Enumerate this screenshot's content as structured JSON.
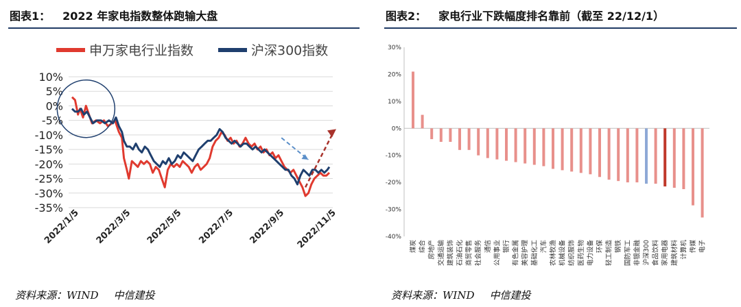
{
  "left": {
    "title_label": "图表1：",
    "title_text": "2022 年家电指数整体跑输大盘",
    "source_a": "资料来源：WIND",
    "source_b": "中信建投",
    "colors": {
      "sw": "#e03a2f",
      "hs": "#1f3f6e",
      "annot_blue": "#5b8fc9",
      "annot_red": "#a8322b"
    },
    "chart_data": {
      "type": "line",
      "x_ticks": [
        "2022/1/5",
        "2022/3/5",
        "2022/5/5",
        "2022/7/5",
        "2022/9/5",
        "2022/11/5"
      ],
      "y_ticks": [
        "10%",
        "5%",
        "0%",
        "-5%",
        "-10%",
        "-15%",
        "-20%",
        "-25%",
        "-30%",
        "-35%"
      ],
      "ylim": [
        -35,
        10
      ],
      "grid": true,
      "legend_position": "top",
      "series": [
        {
          "name": "申万家电行业指数",
          "values": [
            [
              0,
              3
            ],
            [
              3,
              2
            ],
            [
              6,
              -3
            ],
            [
              8,
              -1
            ],
            [
              11,
              -4
            ],
            [
              14,
              0
            ],
            [
              17,
              -3
            ],
            [
              20,
              -6
            ],
            [
              24,
              -5
            ],
            [
              28,
              -6
            ],
            [
              32,
              -5
            ],
            [
              36,
              -7
            ],
            [
              40,
              -6
            ],
            [
              43,
              -5
            ],
            [
              47,
              -9
            ],
            [
              50,
              -11
            ],
            [
              52,
              -18
            ],
            [
              55,
              -22
            ],
            [
              57,
              -25
            ],
            [
              60,
              -19
            ],
            [
              63,
              -20
            ],
            [
              66,
              -21
            ],
            [
              69,
              -19
            ],
            [
              72,
              -20
            ],
            [
              75,
              -19
            ],
            [
              78,
              -20
            ],
            [
              81,
              -23
            ],
            [
              84,
              -21
            ],
            [
              87,
              -22
            ],
            [
              90,
              -25
            ],
            [
              93,
              -28
            ],
            [
              96,
              -22
            ],
            [
              99,
              -20
            ],
            [
              102,
              -21
            ],
            [
              105,
              -20
            ],
            [
              108,
              -21
            ],
            [
              111,
              -19
            ],
            [
              114,
              -20
            ],
            [
              117,
              -21
            ],
            [
              120,
              -23
            ],
            [
              123,
              -21
            ],
            [
              126,
              -20
            ],
            [
              129,
              -22
            ],
            [
              132,
              -21
            ],
            [
              135,
              -20
            ],
            [
              138,
              -18
            ],
            [
              141,
              -14
            ],
            [
              144,
              -12
            ],
            [
              147,
              -11
            ],
            [
              150,
              -9
            ],
            [
              153,
              -10
            ],
            [
              156,
              -12
            ],
            [
              159,
              -11
            ],
            [
              162,
              -13
            ],
            [
              165,
              -12
            ],
            [
              168,
              -14
            ],
            [
              171,
              -13
            ],
            [
              174,
              -11
            ],
            [
              177,
              -13
            ],
            [
              180,
              -14
            ],
            [
              183,
              -13
            ],
            [
              186,
              -15
            ],
            [
              189,
              -14
            ],
            [
              192,
              -16
            ],
            [
              195,
              -15
            ],
            [
              198,
              -17
            ],
            [
              201,
              -16
            ],
            [
              204,
              -18
            ],
            [
              207,
              -17
            ],
            [
              210,
              -19
            ],
            [
              213,
              -21
            ],
            [
              216,
              -22
            ],
            [
              219,
              -23
            ],
            [
              222,
              -22
            ],
            [
              225,
              -24
            ],
            [
              228,
              -26
            ],
            [
              231,
              -28
            ],
            [
              234,
              -31
            ],
            [
              237,
              -30
            ],
            [
              240,
              -27
            ],
            [
              243,
              -25
            ],
            [
              246,
              -24
            ],
            [
              249,
              -23
            ],
            [
              252,
              -24
            ],
            [
              255,
              -24
            ],
            [
              258,
              -23
            ]
          ]
        },
        {
          "name": "沪深300指数",
          "values": [
            [
              0,
              -1
            ],
            [
              3,
              -2
            ],
            [
              6,
              -2
            ],
            [
              9,
              -1
            ],
            [
              12,
              -3
            ],
            [
              15,
              -2
            ],
            [
              18,
              -4
            ],
            [
              21,
              -6
            ],
            [
              25,
              -5
            ],
            [
              29,
              -5
            ],
            [
              33,
              -6
            ],
            [
              37,
              -5
            ],
            [
              41,
              -6
            ],
            [
              44,
              -4
            ],
            [
              47,
              -7
            ],
            [
              50,
              -9
            ],
            [
              52,
              -12
            ],
            [
              55,
              -14
            ],
            [
              58,
              -14
            ],
            [
              61,
              -15
            ],
            [
              64,
              -13
            ],
            [
              67,
              -15
            ],
            [
              70,
              -16
            ],
            [
              73,
              -14
            ],
            [
              76,
              -15
            ],
            [
              79,
              -17
            ],
            [
              82,
              -19
            ],
            [
              85,
              -20
            ],
            [
              88,
              -21
            ],
            [
              91,
              -19
            ],
            [
              94,
              -20
            ],
            [
              97,
              -18
            ],
            [
              100,
              -20
            ],
            [
              103,
              -19
            ],
            [
              106,
              -17
            ],
            [
              109,
              -18
            ],
            [
              112,
              -16
            ],
            [
              115,
              -17
            ],
            [
              118,
              -18
            ],
            [
              121,
              -19
            ],
            [
              124,
              -17
            ],
            [
              127,
              -15
            ],
            [
              130,
              -14
            ],
            [
              133,
              -13
            ],
            [
              136,
              -12
            ],
            [
              139,
              -12
            ],
            [
              142,
              -11
            ],
            [
              145,
              -10
            ],
            [
              148,
              -8
            ],
            [
              151,
              -9
            ],
            [
              154,
              -11
            ],
            [
              157,
              -12
            ],
            [
              160,
              -13
            ],
            [
              163,
              -12
            ],
            [
              166,
              -13
            ],
            [
              169,
              -14
            ],
            [
              172,
              -13
            ],
            [
              175,
              -13
            ],
            [
              178,
              -14
            ],
            [
              181,
              -15
            ],
            [
              184,
              -14
            ],
            [
              187,
              -15
            ],
            [
              190,
              -16
            ],
            [
              193,
              -15
            ],
            [
              196,
              -16
            ],
            [
              199,
              -17
            ],
            [
              202,
              -18
            ],
            [
              205,
              -19
            ],
            [
              208,
              -20
            ],
            [
              211,
              -21
            ],
            [
              214,
              -22
            ],
            [
              217,
              -22
            ],
            [
              220,
              -24
            ],
            [
              223,
              -25
            ],
            [
              226,
              -27
            ],
            [
              229,
              -24
            ],
            [
              232,
              -22
            ],
            [
              235,
              -23
            ],
            [
              238,
              -24
            ],
            [
              241,
              -22
            ],
            [
              244,
              -22
            ],
            [
              247,
              -23
            ],
            [
              250,
              -22
            ],
            [
              253,
              -23
            ],
            [
              256,
              -22
            ],
            [
              258,
              -21
            ]
          ]
        }
      ]
    }
  },
  "right": {
    "title_label": "图表2：",
    "title_text": "家电行业下跌幅度排名靠前（截至 22/12/1）",
    "source_a": "资料来源：WIND",
    "source_b": "中信建投",
    "colors": {
      "bar": "#e8908b",
      "highlight": "#c0392b",
      "benchmark": "#8ea9d6"
    },
    "chart_data": {
      "type": "bar",
      "categories": [
        "煤炭",
        "综合",
        "房地产",
        "交通运输",
        "建筑装饰",
        "石油石化",
        "商贸零售",
        "社会服务",
        "通信",
        "公用事业",
        "银行",
        "有色金属",
        "美容护理",
        "基础化工",
        "汽车",
        "农林牧渔",
        "机械设备",
        "纺织服饰",
        "医药生物",
        "电力设备",
        "环保",
        "轻工制造",
        "钢铁",
        "国防军工",
        "非银金融",
        "沪深300",
        "食品饮料",
        "家用电器",
        "建筑材料",
        "计算机",
        "传媒",
        "电子"
      ],
      "values": [
        21,
        5,
        -4,
        -5,
        -5,
        -8,
        -8,
        -10,
        -11,
        -11.5,
        -12,
        -12.5,
        -13,
        -13.5,
        -14,
        -15,
        -15.5,
        -16,
        -16.5,
        -17,
        -18,
        -19,
        -19.5,
        -20,
        -20,
        -20.5,
        -20.5,
        -21.5,
        -22,
        -22.5,
        -28.5,
        -33
      ],
      "y_ticks": [
        "30%",
        "20%",
        "10%",
        "0%",
        "-10%",
        "-20%",
        "-30%",
        "-40%"
      ],
      "ylim": [
        -40,
        30
      ],
      "highlight": "家用电器",
      "benchmark": "沪深300"
    }
  }
}
